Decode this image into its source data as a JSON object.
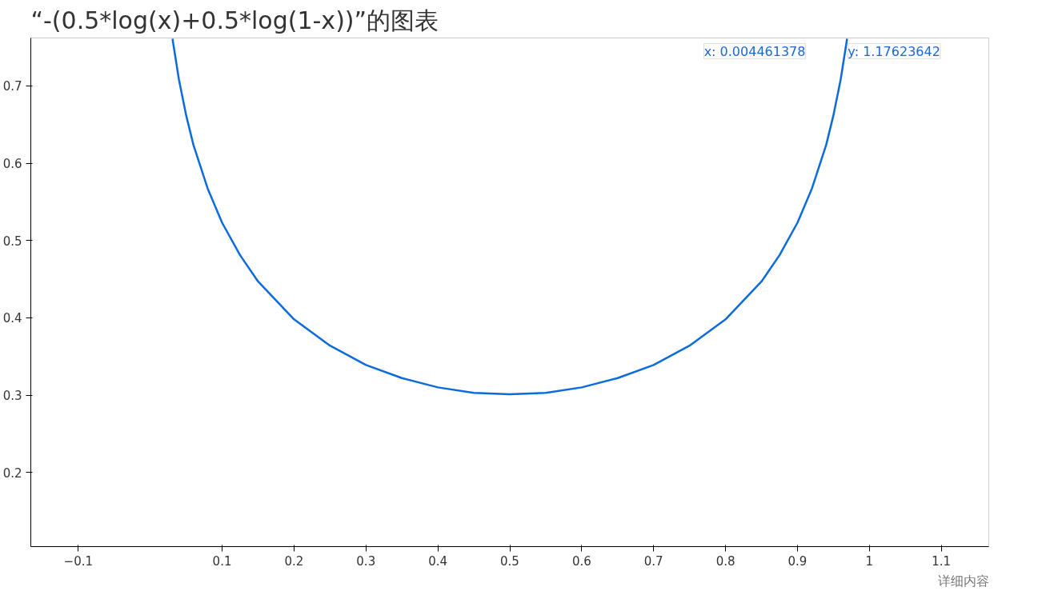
{
  "chart_data": {
    "type": "line",
    "title": "“-(0.5*log(x)+0.5*log(1-x))”的图表",
    "x": [
      0.031,
      0.04,
      0.05,
      0.06,
      0.08,
      0.1,
      0.125,
      0.15,
      0.2,
      0.25,
      0.3,
      0.35,
      0.4,
      0.45,
      0.5,
      0.55,
      0.6,
      0.65,
      0.7,
      0.75,
      0.8,
      0.85,
      0.875,
      0.9,
      0.92,
      0.94,
      0.95,
      0.96,
      0.969
    ],
    "series": [
      {
        "color": "#0b6bdc",
        "values": [
          0.761,
          0.708,
          0.662,
          0.624,
          0.567,
          0.523,
          0.481,
          0.447,
          0.398,
          0.364,
          0.339,
          0.322,
          0.31,
          0.303,
          0.301,
          0.303,
          0.31,
          0.322,
          0.339,
          0.364,
          0.398,
          0.447,
          0.481,
          0.523,
          0.567,
          0.624,
          0.662,
          0.708,
          0.761
        ]
      }
    ],
    "xlim": [
      -0.166,
      1.166
    ],
    "ylim": [
      0.104,
      0.762
    ],
    "xticks": [
      -0.1,
      0.1,
      0.2,
      0.3,
      0.4,
      0.5,
      0.6,
      0.7,
      0.8,
      0.9,
      1,
      1.1
    ],
    "yticks": [
      0.2,
      0.3,
      0.4,
      0.5,
      0.6,
      0.7
    ],
    "grid": false,
    "marker": "none",
    "line_style": "solid",
    "annotations": [
      "x: 0.004461378",
      "y: 1.17623642",
      "详细内容"
    ]
  }
}
